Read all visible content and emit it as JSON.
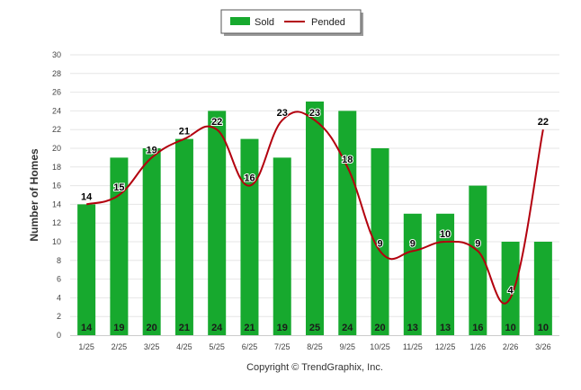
{
  "chart_data": {
    "type": "bar",
    "categories": [
      "1/25",
      "2/25",
      "3/25",
      "4/25",
      "5/25",
      "6/25",
      "7/25",
      "8/25",
      "9/25",
      "10/25",
      "11/25",
      "12/25",
      "1/26",
      "2/26",
      "3/26"
    ],
    "series": [
      {
        "name": "Sold",
        "type": "bar",
        "values": [
          14,
          19,
          20,
          21,
          24,
          21,
          19,
          25,
          24,
          20,
          13,
          13,
          16,
          10,
          10
        ]
      },
      {
        "name": "Pended",
        "type": "line",
        "values": [
          14,
          15,
          19,
          21,
          22,
          16,
          23,
          23,
          18,
          9,
          9,
          10,
          9,
          4,
          22
        ]
      }
    ],
    "yticks": [
      0,
      2,
      4,
      6,
      8,
      10,
      12,
      14,
      16,
      18,
      20,
      22,
      24,
      26,
      28,
      30
    ],
    "ylabel": "Number of Homes",
    "xlabel": "",
    "ylim": [
      0,
      30
    ],
    "grid": true,
    "legend_position": "top-center",
    "colors": {
      "sold": "#17a92e",
      "pended": "#b3000e"
    },
    "footer": "Copyright © TrendGraphix, Inc."
  }
}
